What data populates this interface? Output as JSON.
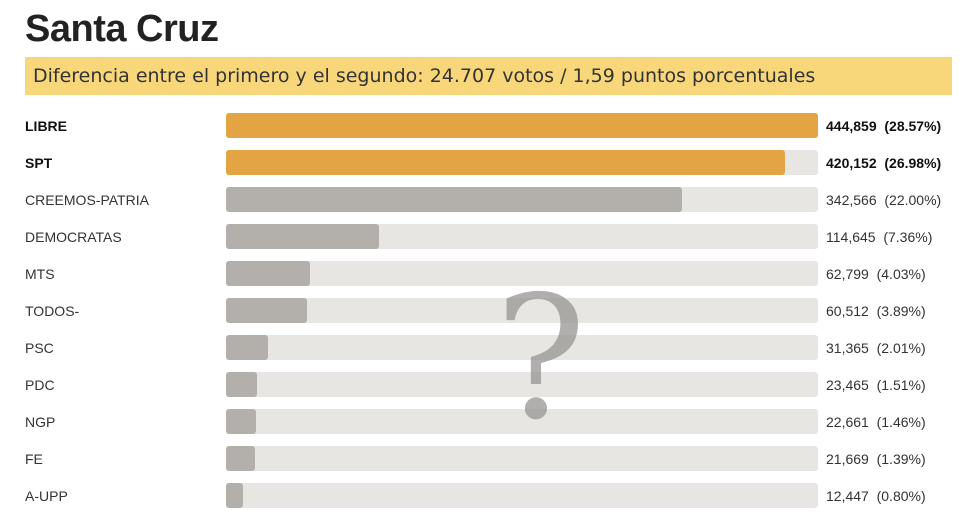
{
  "chart_data": {
    "type": "bar",
    "orientation": "horizontal",
    "title": "Santa Cruz",
    "subtitle": "Diferencia entre el primero y el segundo: 24.707 votos / 1,59 puntos porcentuales",
    "categories": [
      "LIBRE",
      "SPT",
      "CREEMOS-PATRIA",
      "DEMOCRATAS",
      "MTS",
      "TODOS-",
      "PSC",
      "PDC",
      "NGP",
      "FE",
      "A-UPP"
    ],
    "votes": [
      444859,
      420152,
      342566,
      114645,
      62799,
      60512,
      31365,
      23465,
      22661,
      21669,
      12447
    ],
    "percent": [
      28.57,
      26.98,
      22.0,
      7.36,
      4.03,
      3.89,
      2.01,
      1.51,
      1.46,
      1.39,
      0.8
    ],
    "value_labels": [
      "444,859  (28.57%)",
      "420,152  (26.98%)",
      "342,566  (22.00%)",
      "114,645  (7.36%)",
      "62,799  (4.03%)",
      "60,512  (3.89%)",
      "31,365  (2.01%)",
      "23,465  (1.51%)",
      "22,661  (1.46%)",
      "21,669  (1.39%)",
      "12,447  (0.80%)"
    ],
    "highlighted": [
      true,
      true,
      false,
      false,
      false,
      false,
      false,
      false,
      false,
      false,
      false
    ],
    "xlim": [
      0,
      28.57
    ],
    "colors": {
      "highlight": "#e3a444",
      "default": "#b3b0ab",
      "track": "#e8e6e2",
      "subtitle_bg": "#f8d77a"
    },
    "overlay_symbol": "?"
  }
}
